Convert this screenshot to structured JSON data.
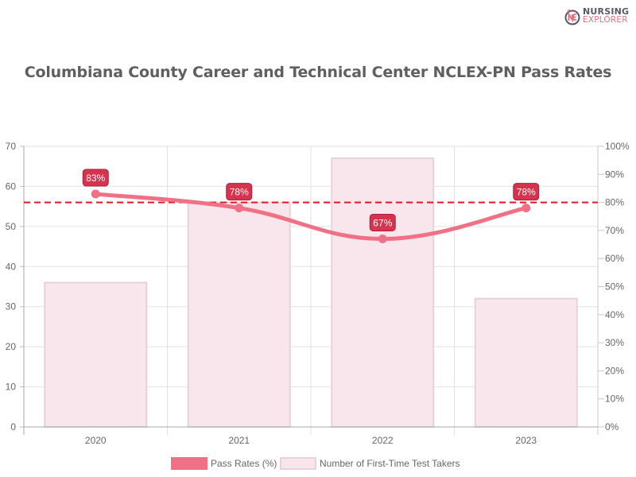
{
  "brand": {
    "line1": "NURSING",
    "line2": "EXPLORER",
    "icon": "nursing-explorer-logo-icon"
  },
  "title": "Columbiana County Career and Technical Center NCLEX-PN Pass Rates",
  "legend": {
    "pass_rates_label": "Pass Rates (%)",
    "test_takers_label": "Number of First-Time Test Takers"
  },
  "colors": {
    "line": "#f07185",
    "bar_fill": "#f8e6ec",
    "bar_border": "#e6d3d9",
    "label_bg": "#d6334f",
    "label_border": "#a8213a",
    "reference_line": "#e8141e",
    "title": "#5f5f5f",
    "tick": "#666666"
  },
  "chart_data": {
    "type": "bar+line",
    "title": "Columbiana County Career and Technical Center NCLEX-PN Pass Rates",
    "categories": [
      "2020",
      "2021",
      "2022",
      "2023"
    ],
    "series": [
      {
        "name": "Pass Rates (%)",
        "type": "line",
        "axis": "right",
        "values": [
          83,
          78,
          67,
          78
        ],
        "labels": [
          "83%",
          "78%",
          "67%",
          "78%"
        ]
      },
      {
        "name": "Number of First-Time Test Takers",
        "type": "bar",
        "axis": "left",
        "values": [
          36,
          56,
          67,
          32
        ]
      }
    ],
    "reference_line": {
      "axis": "right",
      "value": 80,
      "style": "dashed",
      "color": "#e8141e"
    },
    "left_axis": {
      "ylim": [
        0,
        70
      ],
      "ticks": [
        "0",
        "10",
        "20",
        "30",
        "40",
        "50",
        "60",
        "70"
      ]
    },
    "right_axis": {
      "ylim": [
        0,
        100
      ],
      "ticks": [
        "0%",
        "10%",
        "20%",
        "30%",
        "40%",
        "50%",
        "60%",
        "70%",
        "80%",
        "90%",
        "100%"
      ]
    },
    "xlabel": "",
    "ylabel": "",
    "grid": true,
    "legend_position": "bottom"
  }
}
